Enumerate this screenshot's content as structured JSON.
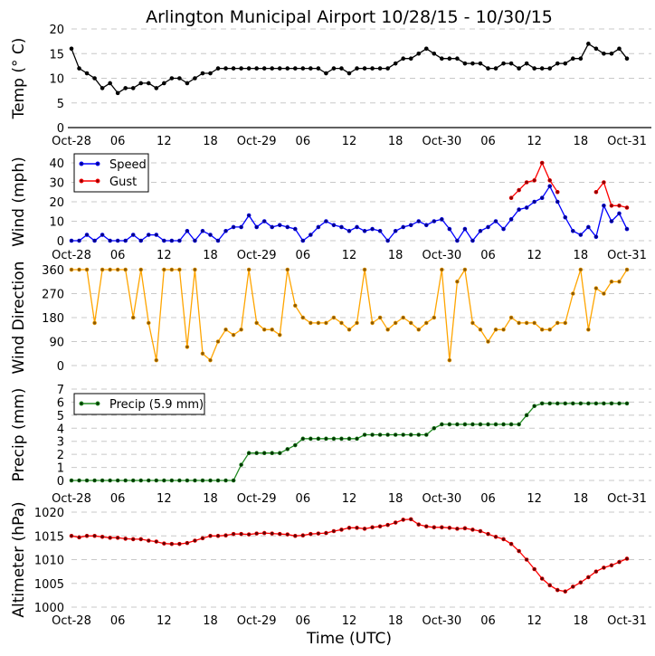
{
  "title": "Arlington Municipal Airport 10/28/15 - 10/30/15",
  "xlabel": "Time (UTC)",
  "colors": {
    "temp": "#000000",
    "speed": "#0000ff",
    "gust": "#ff0000",
    "direction": "#ffa500",
    "precip": "#228b22",
    "altimeter": "#ff0000",
    "grid": "#c8c8c8"
  },
  "chart_data": [
    {
      "type": "line",
      "name": "temp",
      "ylabel": "Temp (° C)",
      "ylim": [
        0,
        20
      ],
      "yticks": [
        "0",
        "5",
        "10",
        "15",
        "20"
      ],
      "xlim_hours": [
        0,
        72
      ],
      "xticks": [
        "Oct-28",
        "06",
        "12",
        "18",
        "Oct-29",
        "06",
        "12",
        "18",
        "Oct-30",
        "06",
        "12",
        "18",
        "Oct-31"
      ],
      "series": [
        {
          "name": "Temp",
          "color_key": "temp",
          "x_hours_step": 1,
          "values": [
            16,
            12,
            11,
            10,
            8,
            9,
            7,
            8,
            8,
            9,
            9,
            8,
            9,
            10,
            10,
            9,
            10,
            11,
            11,
            12,
            12,
            12,
            12,
            12,
            12,
            12,
            12,
            12,
            12,
            12,
            12,
            12,
            12,
            11,
            12,
            12,
            11,
            12,
            12,
            12,
            12,
            12,
            13,
            14,
            14,
            15,
            16,
            15,
            14,
            14,
            14,
            13,
            13,
            13,
            12,
            12,
            13,
            13,
            12,
            13,
            12,
            12,
            12,
            13,
            13,
            14,
            14,
            17,
            16,
            15,
            15,
            16,
            14
          ]
        }
      ]
    },
    {
      "type": "line",
      "name": "wind",
      "ylabel": "Wind (mph)",
      "ylim": [
        0,
        40
      ],
      "yticks": [
        "0",
        "10",
        "20",
        "30",
        "40"
      ],
      "xlim_hours": [
        0,
        72
      ],
      "xticks": [
        "Oct-28",
        "06",
        "12",
        "18",
        "Oct-29",
        "06",
        "12",
        "18",
        "Oct-30",
        "06",
        "12",
        "18",
        "Oct-31"
      ],
      "legend": {
        "placement": "top-left",
        "entries": [
          "Speed",
          "Gust"
        ]
      },
      "series": [
        {
          "name": "Speed",
          "color_key": "speed",
          "x_hours_step": 1,
          "values": [
            0,
            0,
            3,
            0,
            3,
            0,
            0,
            0,
            3,
            0,
            3,
            3,
            0,
            0,
            0,
            5,
            0,
            5,
            3,
            0,
            5,
            7,
            7,
            13,
            7,
            10,
            7,
            8,
            7,
            6,
            0,
            3,
            7,
            10,
            8,
            7,
            5,
            7,
            5,
            6,
            5,
            0,
            5,
            7,
            8,
            10,
            8,
            10,
            11,
            6,
            0,
            6,
            0,
            5,
            7,
            10,
            6,
            11,
            16,
            17,
            20,
            22,
            28,
            20,
            12,
            5,
            3,
            7,
            2,
            18,
            10,
            14,
            6
          ]
        },
        {
          "name": "Gust",
          "color_key": "gust",
          "x_hours_step": 1,
          "values": [
            null,
            null,
            null,
            null,
            null,
            null,
            null,
            null,
            null,
            null,
            null,
            null,
            null,
            null,
            null,
            null,
            null,
            null,
            null,
            null,
            null,
            null,
            null,
            null,
            null,
            null,
            null,
            null,
            null,
            null,
            null,
            null,
            null,
            null,
            null,
            null,
            null,
            null,
            null,
            null,
            null,
            null,
            null,
            null,
            null,
            null,
            null,
            null,
            null,
            null,
            null,
            null,
            null,
            null,
            null,
            null,
            null,
            22,
            26,
            30,
            31,
            40,
            31,
            25,
            null,
            null,
            null,
            null,
            25,
            30,
            18,
            18,
            17
          ]
        }
      ]
    },
    {
      "type": "line",
      "name": "direction",
      "ylabel": "Wind Direction",
      "ylim": [
        0,
        360
      ],
      "yticks": [
        "0",
        "90",
        "180",
        "270",
        "360"
      ],
      "xlim_hours": [
        0,
        72
      ],
      "series": [
        {
          "name": "Direction",
          "color_key": "direction",
          "x_hours_step": 1,
          "values": [
            360,
            360,
            360,
            160,
            360,
            360,
            360,
            360,
            180,
            360,
            160,
            20,
            360,
            360,
            360,
            70,
            360,
            45,
            20,
            90,
            135,
            115,
            135,
            360,
            160,
            135,
            135,
            115,
            360,
            225,
            180,
            160,
            160,
            160,
            180,
            160,
            135,
            160,
            360,
            160,
            180,
            135,
            160,
            180,
            160,
            135,
            160,
            180,
            360,
            20,
            315,
            360,
            160,
            135,
            90,
            135,
            135,
            180,
            160,
            160,
            160,
            135,
            135,
            160,
            160,
            270,
            360,
            135,
            290,
            270,
            315,
            315,
            360
          ]
        }
      ]
    },
    {
      "type": "line",
      "name": "precip",
      "ylabel": "Precip (mm)",
      "ylim": [
        0,
        7
      ],
      "yticks": [
        "0",
        "1",
        "2",
        "3",
        "4",
        "5",
        "6",
        "7"
      ],
      "xlim_hours": [
        0,
        72
      ],
      "xticks": [
        "Oct-28",
        "06",
        "12",
        "18",
        "Oct-29",
        "06",
        "12",
        "18",
        "Oct-30",
        "06",
        "12",
        "18",
        "Oct-31"
      ],
      "legend": {
        "placement": "top-left",
        "entries": [
          "Precip (5.9 mm)"
        ]
      },
      "series": [
        {
          "name": "Precip (5.9 mm)",
          "color_key": "precip",
          "x_hours_step": 1,
          "values": [
            0,
            0,
            0,
            0,
            0,
            0,
            0,
            0,
            0,
            0,
            0,
            0,
            0,
            0,
            0,
            0,
            0,
            0,
            0,
            0,
            0,
            0,
            1.2,
            2.1,
            2.1,
            2.1,
            2.1,
            2.1,
            2.4,
            2.7,
            3.2,
            3.2,
            3.2,
            3.2,
            3.2,
            3.2,
            3.2,
            3.2,
            3.5,
            3.5,
            3.5,
            3.5,
            3.5,
            3.5,
            3.5,
            3.5,
            3.5,
            4.0,
            4.3,
            4.3,
            4.3,
            4.3,
            4.3,
            4.3,
            4.3,
            4.3,
            4.3,
            4.3,
            4.3,
            5.0,
            5.7,
            5.9,
            5.9,
            5.9,
            5.9,
            5.9,
            5.9,
            5.9,
            5.9,
            5.9,
            5.9,
            5.9,
            5.9
          ]
        }
      ]
    },
    {
      "type": "line",
      "name": "altimeter",
      "ylabel": "Altimeter (hPa)",
      "ylim": [
        1000,
        1020
      ],
      "yticks": [
        "1000",
        "1005",
        "1010",
        "1015",
        "1020"
      ],
      "xlim_hours": [
        0,
        72
      ],
      "xticks": [
        "Oct-28",
        "06",
        "12",
        "18",
        "Oct-29",
        "06",
        "12",
        "18",
        "Oct-30",
        "06",
        "12",
        "18",
        "Oct-31"
      ],
      "series": [
        {
          "name": "Altimeter",
          "color_key": "altimeter",
          "x_hours_step": 1,
          "values": [
            1015,
            1014.7,
            1015,
            1015,
            1014.8,
            1014.6,
            1014.6,
            1014.4,
            1014.3,
            1014.3,
            1014,
            1013.8,
            1013.4,
            1013.3,
            1013.3,
            1013.5,
            1014,
            1014.5,
            1015,
            1015,
            1015.1,
            1015.4,
            1015.4,
            1015.3,
            1015.5,
            1015.6,
            1015.5,
            1015.4,
            1015.3,
            1015,
            1015.1,
            1015.4,
            1015.5,
            1015.6,
            1016,
            1016.3,
            1016.7,
            1016.7,
            1016.5,
            1016.8,
            1017,
            1017.3,
            1017.8,
            1018.4,
            1018.5,
            1017.4,
            1017,
            1016.8,
            1016.8,
            1016.7,
            1016.5,
            1016.6,
            1016.3,
            1016,
            1015.4,
            1014.8,
            1014.3,
            1013.3,
            1011.8,
            1010,
            1008,
            1006,
            1004.6,
            1003.6,
            1003.3,
            1004.3,
            1005.2,
            1006.3,
            1007.5,
            1008.3,
            1008.8,
            1009.5,
            1010.2
          ]
        }
      ]
    }
  ]
}
